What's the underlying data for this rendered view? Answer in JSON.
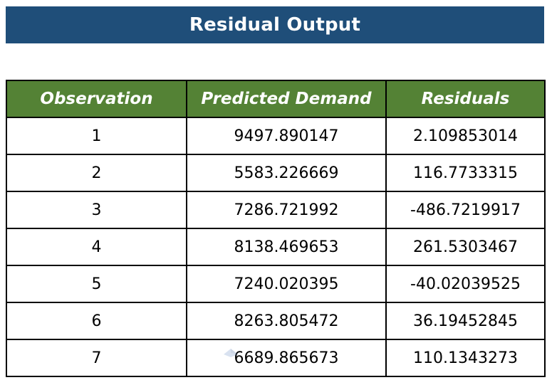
{
  "title": "Residual Output",
  "table": {
    "headers": [
      "Observation",
      "Predicted Demand",
      "Residuals"
    ],
    "rows": [
      {
        "observation": "1",
        "predicted": "9497.890147",
        "residual": "2.109853014"
      },
      {
        "observation": "2",
        "predicted": "5583.226669",
        "residual": "116.7733315"
      },
      {
        "observation": "3",
        "predicted": "7286.721992",
        "residual": "-486.7219917"
      },
      {
        "observation": "4",
        "predicted": "8138.469653",
        "residual": "261.5303467"
      },
      {
        "observation": "5",
        "predicted": "7240.020395",
        "residual": "-40.02039525"
      },
      {
        "observation": "6",
        "predicted": "8263.805472",
        "residual": "36.19452845"
      },
      {
        "observation": "7",
        "predicted": "6689.865673",
        "residual": "110.1343273"
      }
    ]
  },
  "colors": {
    "title_background": "#1f4e79",
    "header_background": "#548235",
    "header_text": "#ffffff",
    "border": "#000000"
  },
  "icons": {
    "watermark": "watermark-logo-icon"
  }
}
